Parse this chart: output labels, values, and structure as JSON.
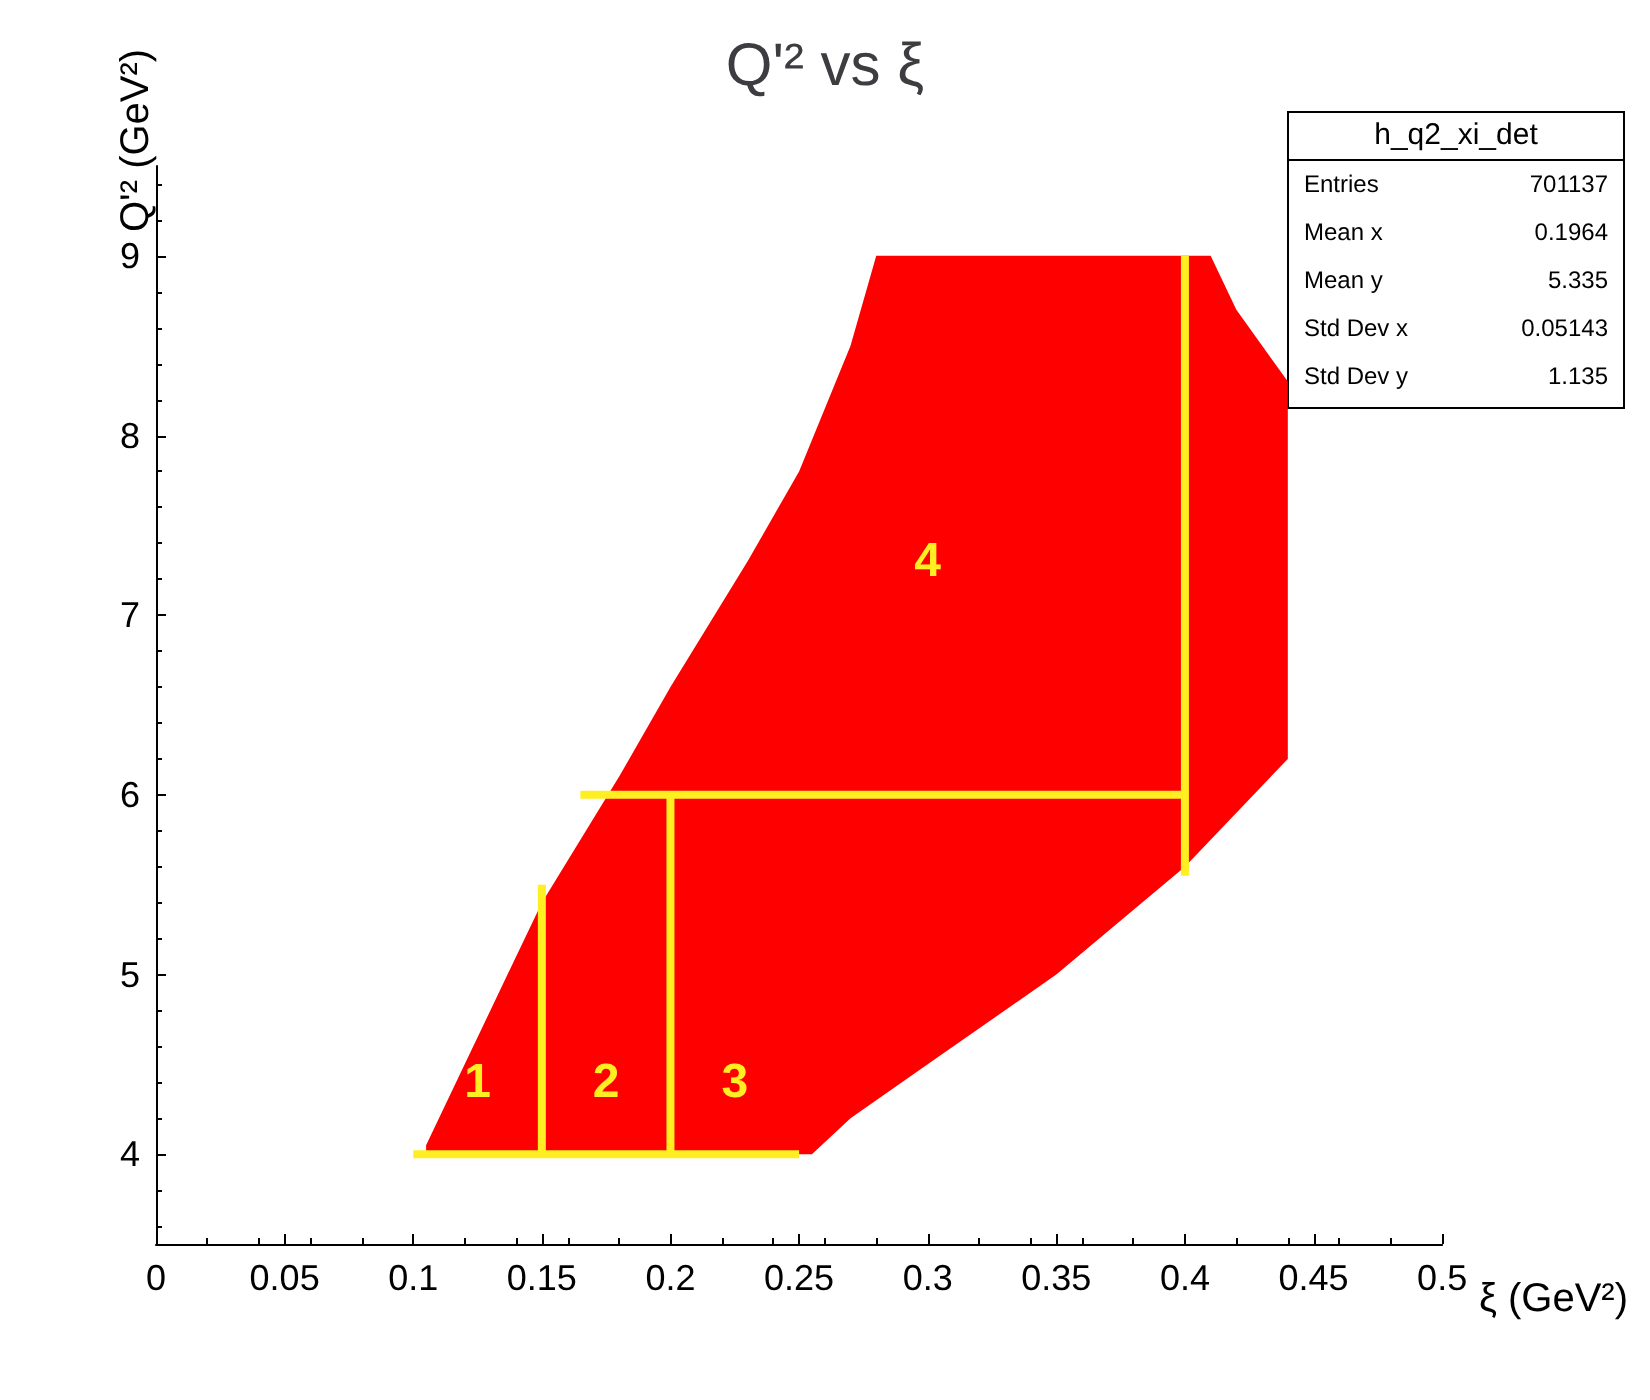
{
  "chart_data": {
    "type": "area",
    "title": "Q'² vs ξ",
    "xlabel": "ξ (GeV²)",
    "ylabel": "Q'² (GeV²)",
    "xlim": [
      0,
      0.5
    ],
    "ylim": [
      3.5,
      9.5
    ],
    "xticks": [
      0,
      0.05,
      0.1,
      0.15,
      0.2,
      0.25,
      0.3,
      0.35,
      0.4,
      0.45,
      0.5
    ],
    "yticks": [
      4,
      5,
      6,
      7,
      8,
      9
    ],
    "grid": false,
    "marker": "none",
    "series": [
      {
        "type": "line",
        "color": "#ffee22",
        "x": [
          0.1,
          0.25
        ],
        "values": [
          4,
          4
        ]
      },
      {
        "type": "line",
        "color": "#ffee22",
        "x": [
          0.15,
          0.15
        ],
        "values": [
          4,
          5.5
        ]
      },
      {
        "type": "line",
        "color": "#ffee22",
        "x": [
          0.2,
          0.2
        ],
        "values": [
          4,
          6
        ]
      },
      {
        "type": "line",
        "color": "#ffee22",
        "x": [
          0.165,
          0.4
        ],
        "values": [
          6,
          6
        ]
      },
      {
        "type": "line",
        "color": "#ffee22",
        "x": [
          0.4,
          0.4
        ],
        "values": [
          5.55,
          9
        ]
      },
      {
        "color": "#ff0000",
        "x": [
          0.105,
          0.12,
          0.15,
          0.18,
          0.2,
          0.23,
          0.25,
          0.27,
          0.28,
          0.41,
          0.42,
          0.44,
          0.44,
          0.4,
          0.35,
          0.3,
          0.27,
          0.255,
          0.105
        ],
        "values": [
          4.05,
          4.5,
          5.4,
          6.1,
          6.6,
          7.3,
          7.8,
          8.5,
          9,
          9,
          8.7,
          8.3,
          6.2,
          5.6,
          5,
          4.5,
          4.2,
          4,
          4
        ]
      }
    ],
    "annotations": [
      "1",
      "2",
      "3",
      "4",
      "h_q2_xi_det",
      "Entries",
      "701137",
      "Mean x",
      "0.1964",
      "Mean y",
      "5.335",
      "Std Dev x",
      "0.05143",
      "Std Dev y",
      "1.135"
    ]
  }
}
